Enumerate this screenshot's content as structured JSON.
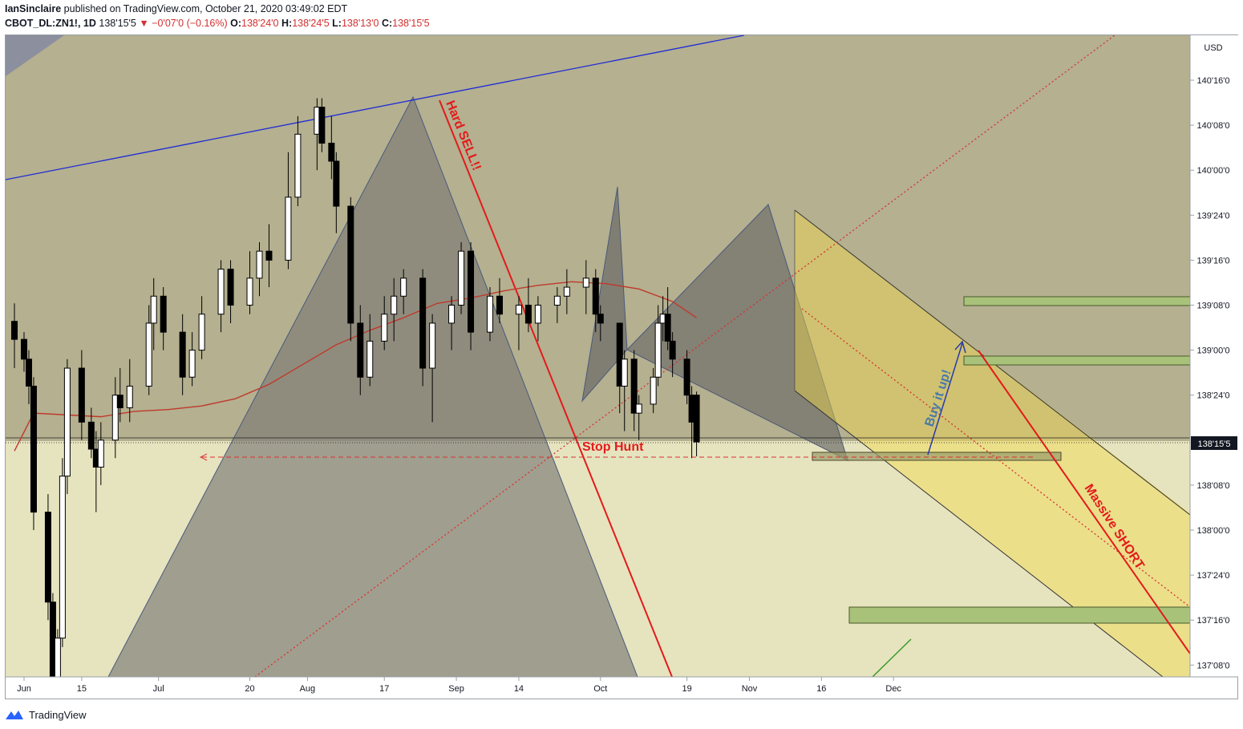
{
  "header": {
    "author": "IanSinclaire",
    "published_text": "published on TradingView.com, October 21, 2020 03:49:02 EDT",
    "symbol": "CBOT_DL:ZN1!, 1D",
    "last": "138'15'5",
    "change_arrow": "▼",
    "change": "−0'07'0 (−0.16%)",
    "open_label": "O:",
    "open": "138'24'0",
    "high_label": "H:",
    "high": "138'24'5",
    "low_label": "L:",
    "low": "138'13'0",
    "close_label": "C:",
    "close": "138'15'5"
  },
  "footer": {
    "brand": "TradingView"
  },
  "colors": {
    "up_candle": "#ffffff",
    "down_candle": "#000000",
    "ma": "#c0392b",
    "trend_blue": "#1f2bd6",
    "red_line": "#e31b1b",
    "channel_fill": "#f2d94a",
    "zone_fill": "#a9c27a",
    "bg_upper": "#b4b090",
    "bg_lower": "#e6e3bf"
  },
  "chart_data": {
    "type": "candlestick",
    "symbol": "CBOT_DL:ZN1!",
    "interval": "1D",
    "currency": "USD",
    "current_price_label": "138'15'5",
    "y_ticks": [
      "140'16'0",
      "140'08'0",
      "140'00'0",
      "139'24'0",
      "139'16'0",
      "139'08'0",
      "139'00'0",
      "138'24'0",
      "138'08'0",
      "138'00'0",
      "137'24'0",
      "137'16'0",
      "137'08'0"
    ],
    "x_ticks": [
      "Jun",
      "15",
      "Jul",
      "20",
      "Aug",
      "17",
      "Sep",
      "14",
      "Oct",
      "19",
      "Nov",
      "16",
      "Dec"
    ],
    "y_range_points": [
      136.8,
      141.0
    ],
    "moving_average_dates": [
      "2020-06-01",
      "2020-06-05",
      "2020-06-12",
      "2020-06-19",
      "2020-06-26",
      "2020-07-03",
      "2020-07-10",
      "2020-07-17",
      "2020-07-24",
      "2020-07-31",
      "2020-08-07",
      "2020-08-14",
      "2020-08-21",
      "2020-08-28",
      "2020-09-04",
      "2020-09-11",
      "2020-09-18",
      "2020-09-25",
      "2020-10-02",
      "2020-10-09",
      "2020-10-16",
      "2020-10-21"
    ],
    "moving_average_values": [
      138.44,
      138.65,
      138.64,
      138.63,
      138.66,
      138.67,
      138.69,
      138.73,
      138.81,
      138.92,
      139.03,
      139.11,
      139.18,
      139.26,
      139.29,
      139.33,
      139.36,
      139.38,
      139.37,
      139.34,
      139.27,
      139.18
    ],
    "candles_close_approx": [
      [
        "2020-06-01",
        139.16,
        139.26,
        138.9,
        139.06
      ],
      [
        "2020-06-03",
        139.06,
        139.1,
        138.88,
        138.95
      ],
      [
        "2020-06-04",
        138.95,
        139.0,
        138.7,
        138.8
      ],
      [
        "2020-06-05",
        138.8,
        138.85,
        138.0,
        138.1
      ],
      [
        "2020-06-08",
        138.1,
        138.2,
        137.5,
        137.6
      ],
      [
        "2020-06-09",
        137.6,
        137.65,
        136.9,
        137.0
      ],
      [
        "2020-06-10",
        137.0,
        137.45,
        136.95,
        137.4
      ],
      [
        "2020-06-11",
        137.4,
        138.4,
        137.35,
        138.3
      ],
      [
        "2020-06-12",
        138.3,
        138.95,
        138.2,
        138.9
      ],
      [
        "2020-06-15",
        138.9,
        139.0,
        138.5,
        138.6
      ],
      [
        "2020-06-17",
        138.6,
        138.68,
        138.4,
        138.45
      ],
      [
        "2020-06-18",
        138.45,
        138.55,
        138.1,
        138.35
      ],
      [
        "2020-06-19",
        138.35,
        138.6,
        138.25,
        138.5
      ],
      [
        "2020-06-22",
        138.5,
        138.85,
        138.4,
        138.75
      ],
      [
        "2020-06-23",
        138.75,
        138.9,
        138.6,
        138.68
      ],
      [
        "2020-06-25",
        138.68,
        138.95,
        138.6,
        138.8
      ],
      [
        "2020-06-29",
        138.8,
        139.25,
        138.75,
        139.15
      ],
      [
        "2020-06-30",
        139.15,
        139.4,
        139.0,
        139.3
      ],
      [
        "2020-07-02",
        139.3,
        139.35,
        139.0,
        139.1
      ],
      [
        "2020-07-06",
        139.1,
        139.2,
        138.75,
        138.85
      ],
      [
        "2020-07-08",
        138.85,
        139.1,
        138.8,
        139.0
      ],
      [
        "2020-07-10",
        139.0,
        139.3,
        138.95,
        139.2
      ],
      [
        "2020-07-14",
        139.2,
        139.5,
        139.1,
        139.45
      ],
      [
        "2020-07-16",
        139.45,
        139.5,
        139.15,
        139.25
      ],
      [
        "2020-07-20",
        139.25,
        139.55,
        139.2,
        139.4
      ],
      [
        "2020-07-22",
        139.4,
        139.6,
        139.3,
        139.55
      ],
      [
        "2020-07-24",
        139.55,
        139.7,
        139.35,
        139.5
      ],
      [
        "2020-07-28",
        139.5,
        140.1,
        139.45,
        139.85
      ],
      [
        "2020-07-30",
        139.85,
        140.3,
        139.8,
        140.2
      ],
      [
        "2020-08-03",
        140.2,
        140.4,
        140.0,
        140.35
      ],
      [
        "2020-08-04",
        140.35,
        140.4,
        140.1,
        140.15
      ],
      [
        "2020-08-06",
        140.15,
        140.3,
        139.95,
        140.05
      ],
      [
        "2020-08-07",
        140.05,
        140.1,
        139.65,
        139.8
      ],
      [
        "2020-08-10",
        139.8,
        139.85,
        139.05,
        139.15
      ],
      [
        "2020-08-12",
        139.15,
        139.25,
        138.75,
        138.85
      ],
      [
        "2020-08-14",
        138.85,
        139.2,
        138.8,
        139.05
      ],
      [
        "2020-08-17",
        139.05,
        139.3,
        139.0,
        139.2
      ],
      [
        "2020-08-19",
        139.2,
        139.4,
        139.05,
        139.3
      ],
      [
        "2020-08-21",
        139.3,
        139.45,
        139.2,
        139.4
      ],
      [
        "2020-08-25",
        139.4,
        139.45,
        138.8,
        138.9
      ],
      [
        "2020-08-27",
        138.9,
        139.2,
        138.6,
        139.15
      ],
      [
        "2020-08-31",
        139.15,
        139.3,
        139.0,
        139.25
      ],
      [
        "2020-09-02",
        139.25,
        139.6,
        139.2,
        139.55
      ],
      [
        "2020-09-04",
        139.55,
        139.6,
        139.0,
        139.1
      ],
      [
        "2020-09-08",
        139.1,
        139.35,
        139.05,
        139.3
      ],
      [
        "2020-09-10",
        139.3,
        139.4,
        139.15,
        139.2
      ],
      [
        "2020-09-14",
        139.2,
        139.3,
        139.0,
        139.25
      ],
      [
        "2020-09-16",
        139.25,
        139.4,
        139.1,
        139.15
      ],
      [
        "2020-09-18",
        139.15,
        139.3,
        139.05,
        139.25
      ],
      [
        "2020-09-22",
        139.25,
        139.35,
        139.15,
        139.3
      ],
      [
        "2020-09-24",
        139.3,
        139.45,
        139.2,
        139.35
      ],
      [
        "2020-09-28",
        139.35,
        139.5,
        139.2,
        139.4
      ],
      [
        "2020-09-30",
        139.4,
        139.45,
        139.1,
        139.2
      ],
      [
        "2020-10-01",
        139.2,
        139.25,
        139.05,
        139.15
      ],
      [
        "2020-10-05",
        139.15,
        139.15,
        138.65,
        138.8
      ],
      [
        "2020-10-06",
        138.8,
        139.0,
        138.55,
        138.95
      ],
      [
        "2020-10-08",
        138.95,
        139.0,
        138.55,
        138.65
      ],
      [
        "2020-10-09",
        138.65,
        138.75,
        138.5,
        138.7
      ],
      [
        "2020-10-12",
        138.7,
        138.9,
        138.65,
        138.85
      ],
      [
        "2020-10-13",
        138.85,
        139.25,
        138.8,
        139.15
      ],
      [
        "2020-10-14",
        139.15,
        139.3,
        139.05,
        139.2
      ],
      [
        "2020-10-15",
        139.2,
        139.35,
        139.0,
        139.05
      ],
      [
        "2020-10-16",
        139.05,
        139.1,
        138.85,
        138.95
      ],
      [
        "2020-10-19",
        138.95,
        139.0,
        138.7,
        138.75
      ],
      [
        "2020-10-20",
        138.75,
        138.8,
        138.4,
        138.6
      ],
      [
        "2020-10-21",
        138.75,
        138.77,
        138.41,
        138.49
      ]
    ],
    "annotations": [
      "Hard SELL!!",
      "Stop Hunt",
      "Buy it up!",
      "Massive SHORT"
    ],
    "grid": false
  }
}
